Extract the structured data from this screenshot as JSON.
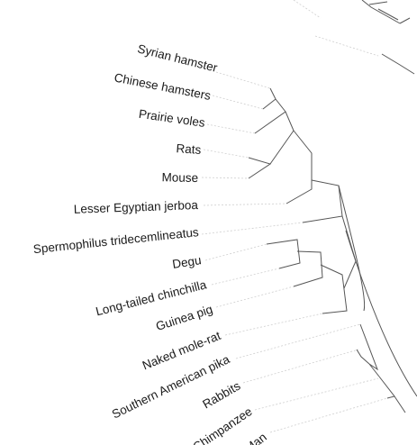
{
  "tree": {
    "leaves": [
      {
        "label": "Syrian hamster"
      },
      {
        "label": "Chinese hamsters"
      },
      {
        "label": "Prairie voles"
      },
      {
        "label": "Rats"
      },
      {
        "label": "Mouse"
      },
      {
        "label": "Lesser Egyptian jerboa"
      },
      {
        "label": "Spermophilus tridecemlineatus"
      },
      {
        "label": "Degu"
      },
      {
        "label": "Long-tailed chinchilla"
      },
      {
        "label": "Guinea pig"
      },
      {
        "label": "Naked mole-rat"
      },
      {
        "label": "Southern American pika"
      },
      {
        "label": "Rabbits"
      },
      {
        "label": "Chimpanzee"
      },
      {
        "label": "Man"
      }
    ]
  }
}
